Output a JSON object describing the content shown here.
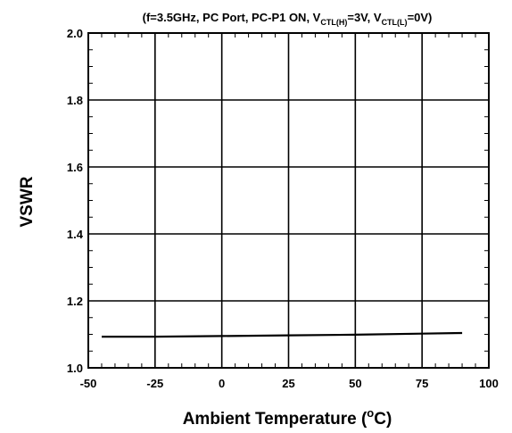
{
  "chart_data": {
    "type": "line",
    "title_parts": {
      "prefix": "(f=3.5GHz, PC Port, PC-P1 ON, V",
      "sub1": "CTL(H)",
      "mid": "=3V, V",
      "sub2": "CTL(L)",
      "suffix": "=0V)"
    },
    "xlabel": "Ambient Temperature (",
    "xlabel_sup": "o",
    "xlabel_end": "C)",
    "ylabel": "VSWR",
    "xlim": [
      -50,
      100
    ],
    "ylim": [
      1.0,
      2.0
    ],
    "xticks": [
      -50,
      -25,
      0,
      25,
      50,
      75,
      100
    ],
    "xtick_labels": [
      "-50",
      "-25",
      "0",
      "25",
      "50",
      "75",
      "100"
    ],
    "yticks": [
      1.0,
      1.2,
      1.4,
      1.6,
      1.8,
      2.0
    ],
    "ytick_labels": [
      "1.0",
      "1.2",
      "1.4",
      "1.6",
      "1.8",
      "2.0"
    ],
    "grid": true,
    "series": [
      {
        "color": "#000000",
        "x": [
          -45,
          -25,
          0,
          25,
          50,
          75,
          90
        ],
        "y": [
          1.093,
          1.093,
          1.095,
          1.097,
          1.099,
          1.102,
          1.104
        ]
      }
    ]
  }
}
